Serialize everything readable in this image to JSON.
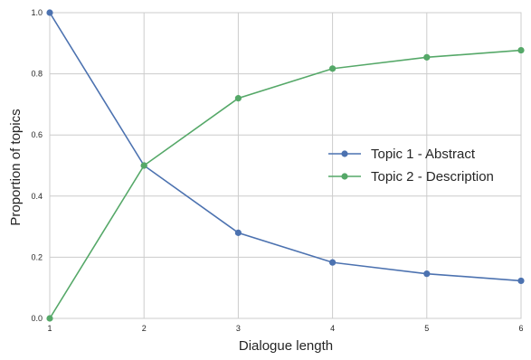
{
  "chart_data": {
    "type": "line",
    "title": "",
    "xlabel": "Dialogue length",
    "ylabel": "Proportion of topics",
    "x": [
      1,
      2,
      3,
      4,
      5,
      6
    ],
    "xlim": [
      1,
      6
    ],
    "ylim": [
      0.0,
      1.0
    ],
    "xticks": [
      "1",
      "2",
      "3",
      "4",
      "5",
      "6"
    ],
    "yticks": [
      "0.0",
      "0.2",
      "0.4",
      "0.6",
      "0.8",
      "1.0"
    ],
    "grid": true,
    "legend_position": "center-right",
    "series": [
      {
        "name": "Topic 1 - Abstract",
        "color": "#4c72b0",
        "values": [
          1.0,
          0.5,
          0.28,
          0.183,
          0.146,
          0.123
        ]
      },
      {
        "name": "Topic 2 - Description",
        "color": "#55a868",
        "values": [
          0.0,
          0.5,
          0.72,
          0.817,
          0.854,
          0.877
        ]
      }
    ]
  }
}
